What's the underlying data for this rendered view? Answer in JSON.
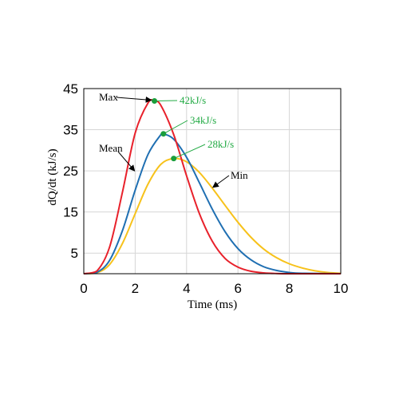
{
  "chart_data": {
    "type": "line",
    "xlabel": "Time (ms)",
    "ylabel": "dQ/dt (kJ/s)",
    "xlim": [
      0,
      10
    ],
    "ylim": [
      0,
      45
    ],
    "x_ticks": [
      "0",
      "2",
      "4",
      "6",
      "8",
      "10"
    ],
    "y_ticks": [
      "5",
      "15",
      "25",
      "35",
      "45"
    ],
    "grid": true,
    "series": [
      {
        "name": "Max",
        "color": "#e8212b",
        "x": [
          0,
          0.5,
          1.0,
          1.5,
          2.0,
          2.5,
          2.75,
          3.0,
          3.5,
          4.0,
          4.5,
          5.0,
          5.5,
          6.0,
          6.5,
          7.0,
          7.5,
          8.0,
          10.0
        ],
        "y": [
          0,
          0.6,
          6.4,
          19.7,
          34.2,
          41.5,
          42.0,
          40.9,
          33.8,
          23.8,
          14.6,
          7.9,
          3.7,
          1.6,
          0.6,
          0.2,
          0.05,
          0,
          0
        ]
      },
      {
        "name": "Mean",
        "color": "#1f6fb2",
        "x": [
          0,
          0.5,
          1.0,
          1.5,
          2.0,
          2.5,
          3.0,
          3.1,
          3.5,
          4.0,
          4.5,
          5.0,
          5.5,
          6.0,
          6.5,
          7.0,
          7.5,
          8.0,
          8.5,
          10.0
        ],
        "y": [
          0,
          0.3,
          3.2,
          10.4,
          20.3,
          29.0,
          33.8,
          34.0,
          32.7,
          28.3,
          22.1,
          15.7,
          10.2,
          6.1,
          3.4,
          1.7,
          0.8,
          0.3,
          0.1,
          0
        ]
      },
      {
        "name": "Min",
        "color": "#f7c21b",
        "x": [
          0,
          0.5,
          1.0,
          1.5,
          2.0,
          2.5,
          3.0,
          3.5,
          4.0,
          4.5,
          5.0,
          5.5,
          6.0,
          6.5,
          7.0,
          7.5,
          8.0,
          8.5,
          9.0,
          9.5,
          10.0
        ],
        "y": [
          0,
          0.2,
          2.2,
          7.3,
          14.6,
          21.8,
          26.6,
          28.0,
          27.2,
          24.6,
          20.8,
          16.6,
          12.5,
          8.9,
          6.0,
          3.9,
          2.4,
          1.4,
          0.7,
          0.3,
          0.1
        ]
      }
    ],
    "peak_markers": [
      {
        "x": 2.75,
        "y": 42,
        "label": "42kJ/s"
      },
      {
        "x": 3.1,
        "y": 34,
        "label": "34kJ/s"
      },
      {
        "x": 3.5,
        "y": 28,
        "label": "28kJ/s"
      }
    ],
    "annotations": [
      {
        "text": "Max",
        "target_x": 2.75,
        "target_y": 42
      },
      {
        "text": "Mean",
        "target_x": 2.1,
        "target_y": 25
      },
      {
        "text": "Min",
        "target_x": 4.9,
        "target_y": 21
      }
    ],
    "marker_color": "#1a9e3c",
    "label_color": "#22aa44"
  }
}
